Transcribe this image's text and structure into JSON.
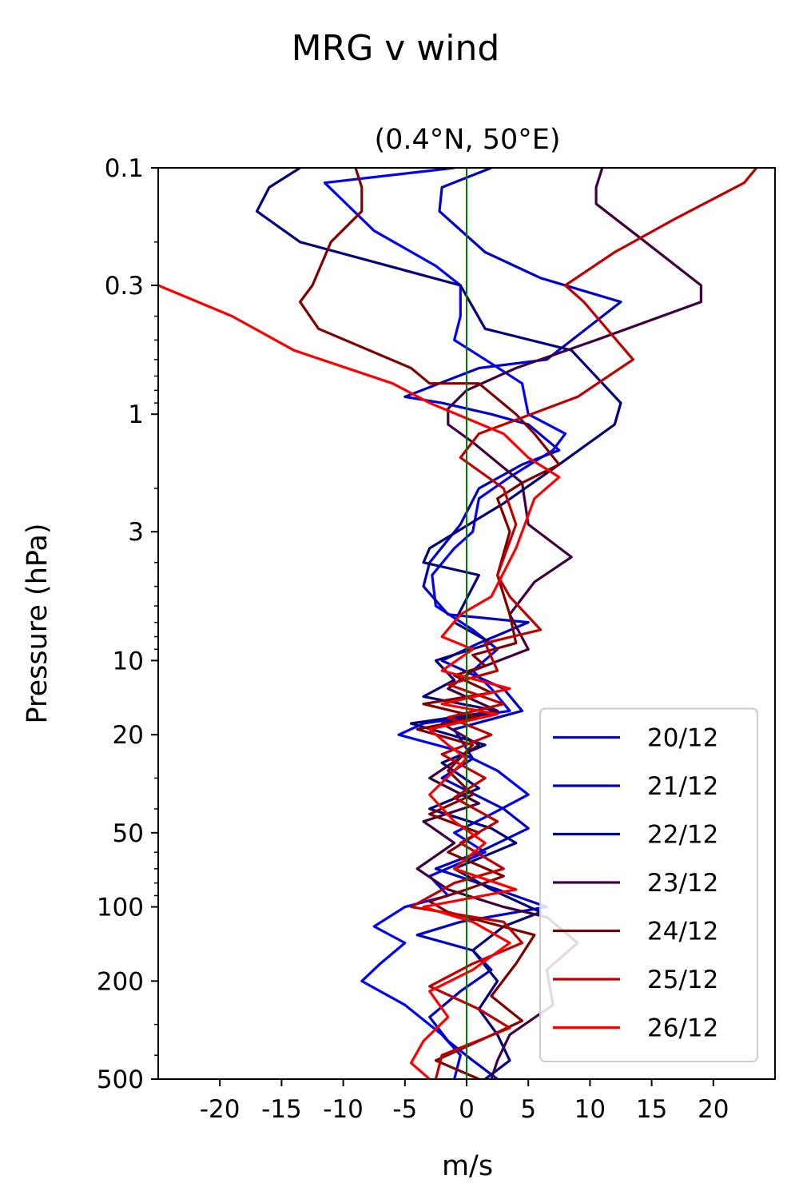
{
  "chart_data": {
    "type": "line",
    "title": "MRG v wind",
    "subtitle": "(0.4°N, 50°E)",
    "xlabel": "m/s",
    "ylabel": "Pressure (hPa)",
    "xlim": [
      -25,
      25
    ],
    "ylim": [
      500,
      0.1
    ],
    "yscale": "log",
    "yaxis_inverted": true,
    "x_ticks": [
      -20,
      -15,
      -10,
      -5,
      0,
      5,
      10,
      15,
      20
    ],
    "x_tick_labels": [
      "-20",
      "-15",
      "-10",
      "-5",
      "0",
      "5",
      "10",
      "15",
      "20"
    ],
    "y_ticks": [
      0.1,
      0.3,
      1,
      3,
      10,
      20,
      50,
      100,
      200,
      500
    ],
    "y_tick_labels": [
      "0.1",
      "0.3",
      "1",
      "3",
      "10",
      "20",
      "50",
      "100",
      "200",
      "500"
    ],
    "grid": false,
    "legend_position": "bottom-right",
    "reference_line": {
      "x": 0,
      "color": "#007a00"
    },
    "series": [
      {
        "name": "20/12",
        "color": "#0000ff",
        "points": [
          [
            -1.0,
            0.1
          ],
          [
            -11.5,
            0.115
          ],
          [
            -7.5,
            0.18
          ],
          [
            -2.5,
            0.25
          ],
          [
            -0.5,
            0.3
          ],
          [
            -0.5,
            0.4
          ],
          [
            -1.0,
            0.5
          ],
          [
            1.5,
            0.6
          ],
          [
            4.5,
            0.75
          ],
          [
            5.0,
            1.0
          ],
          [
            8.0,
            1.2
          ],
          [
            7.0,
            1.4
          ],
          [
            3.5,
            1.8
          ],
          [
            1.0,
            2.2
          ],
          [
            0.5,
            3.0
          ],
          [
            -1.0,
            3.5
          ],
          [
            -2.8,
            4.5
          ],
          [
            -2.5,
            6.0
          ],
          [
            0.5,
            7.5
          ],
          [
            2.5,
            9.0
          ],
          [
            0.5,
            11.0
          ],
          [
            2.0,
            13.0
          ],
          [
            3.5,
            16.0
          ],
          [
            -3.5,
            18.0
          ],
          [
            -5.5,
            20.0
          ],
          [
            -1.0,
            23.0
          ],
          [
            2.5,
            28.0
          ],
          [
            5.0,
            35.0
          ],
          [
            2.0,
            42.0
          ],
          [
            -1.0,
            50.0
          ],
          [
            1.5,
            60.0
          ],
          [
            -3.0,
            75.0
          ],
          [
            -1.5,
            90.0
          ],
          [
            -5.0,
            100.0
          ],
          [
            -7.5,
            120.0
          ],
          [
            -5.0,
            140.0
          ],
          [
            -7.0,
            170.0
          ],
          [
            -8.5,
            200.0
          ],
          [
            -5.0,
            250.0
          ],
          [
            -2.0,
            330.0
          ],
          [
            -0.5,
            400.0
          ],
          [
            -1.0,
            500.0
          ]
        ]
      },
      {
        "name": "21/12",
        "color": "#0000cc",
        "points": [
          [
            2.0,
            0.1
          ],
          [
            -2.0,
            0.12
          ],
          [
            -2.2,
            0.15
          ],
          [
            1.5,
            0.22
          ],
          [
            6.0,
            0.28
          ],
          [
            12.5,
            0.35
          ],
          [
            6.5,
            0.6
          ],
          [
            1.0,
            0.65
          ],
          [
            -5.0,
            0.85
          ],
          [
            -2.0,
            0.9
          ],
          [
            2.0,
            1.0
          ],
          [
            5.0,
            1.1
          ],
          [
            7.5,
            1.4
          ],
          [
            4.5,
            1.6
          ],
          [
            1.0,
            2.0
          ],
          [
            -0.5,
            2.8
          ],
          [
            -3.0,
            4.0
          ],
          [
            -3.5,
            5.0
          ],
          [
            -1.5,
            6.5
          ],
          [
            5.0,
            7.0
          ],
          [
            1.0,
            8.5
          ],
          [
            -2.0,
            10.0
          ],
          [
            3.0,
            13.0
          ],
          [
            4.5,
            16.0
          ],
          [
            -1.0,
            19.0
          ],
          [
            0.5,
            25.0
          ],
          [
            -2.0,
            30.0
          ],
          [
            3.0,
            40.0
          ],
          [
            5.0,
            48.0
          ],
          [
            1.0,
            60.0
          ],
          [
            -2.5,
            70.0
          ],
          [
            2.5,
            85.0
          ],
          [
            6.5,
            100.0
          ],
          [
            -0.5,
            115.0
          ],
          [
            -4.0,
            130.0
          ],
          [
            0.5,
            150.0
          ],
          [
            2.0,
            180.0
          ],
          [
            -0.5,
            220.0
          ],
          [
            -3.0,
            280.0
          ],
          [
            -1.5,
            350.0
          ],
          [
            0.5,
            420.0
          ],
          [
            2.5,
            500.0
          ]
        ]
      },
      {
        "name": "22/12",
        "color": "#000080",
        "points": [
          [
            -13.5,
            0.1
          ],
          [
            -16.0,
            0.12
          ],
          [
            -17.0,
            0.15
          ],
          [
            -13.5,
            0.2
          ],
          [
            -0.5,
            0.3
          ],
          [
            1.5,
            0.45
          ],
          [
            8.5,
            0.55
          ],
          [
            12.5,
            0.9
          ],
          [
            12.0,
            1.1
          ],
          [
            7.5,
            1.6
          ],
          [
            3.0,
            2.3
          ],
          [
            -3.0,
            3.5
          ],
          [
            -3.5,
            4.0
          ],
          [
            1.0,
            4.5
          ],
          [
            -1.0,
            7.0
          ],
          [
            2.0,
            8.5
          ],
          [
            -2.5,
            10.0
          ],
          [
            -1.0,
            12.0
          ],
          [
            -3.5,
            14.0
          ],
          [
            2.5,
            16.0
          ],
          [
            -4.5,
            18.0
          ],
          [
            1.5,
            22.0
          ],
          [
            -2.0,
            26.0
          ],
          [
            1.0,
            33.0
          ],
          [
            -3.0,
            40.0
          ],
          [
            2.0,
            48.0
          ],
          [
            4.0,
            55.0
          ],
          [
            -1.0,
            70.0
          ],
          [
            2.0,
            85.0
          ],
          [
            6.0,
            105.0
          ],
          [
            3.0,
            120.0
          ],
          [
            0.5,
            150.0
          ],
          [
            2.5,
            200.0
          ],
          [
            1.0,
            260.0
          ],
          [
            2.5,
            330.0
          ],
          [
            3.5,
            420.0
          ],
          [
            1.5,
            500.0
          ]
        ]
      },
      {
        "name": "23/12",
        "color": "#400040",
        "points": [
          [
            11.0,
            0.1
          ],
          [
            10.5,
            0.12
          ],
          [
            10.5,
            0.14
          ],
          [
            14.5,
            0.2
          ],
          [
            19.0,
            0.3
          ],
          [
            19.0,
            0.35
          ],
          [
            10.5,
            0.5
          ],
          [
            4.0,
            0.65
          ],
          [
            0.0,
            0.8
          ],
          [
            -1.5,
            0.95
          ],
          [
            -1.5,
            1.1
          ],
          [
            0.5,
            1.3
          ],
          [
            4.5,
            1.9
          ],
          [
            5.0,
            2.8
          ],
          [
            8.5,
            3.8
          ],
          [
            5.5,
            4.8
          ],
          [
            3.5,
            6.5
          ],
          [
            5.0,
            9.0
          ],
          [
            0.5,
            11.0
          ],
          [
            -1.5,
            13.0
          ],
          [
            2.5,
            16.0
          ],
          [
            -2.0,
            18.0
          ],
          [
            1.0,
            22.0
          ],
          [
            -3.0,
            30.0
          ],
          [
            1.0,
            38.0
          ],
          [
            -3.5,
            45.0
          ],
          [
            -1.0,
            55.0
          ],
          [
            -4.0,
            70.0
          ],
          [
            -1.5,
            85.0
          ],
          [
            3.0,
            100.0
          ],
          [
            6.5,
            110.0
          ],
          [
            9.0,
            140.0
          ],
          [
            6.5,
            180.0
          ],
          [
            7.0,
            250.0
          ],
          [
            3.5,
            330.0
          ],
          [
            2.5,
            420.0
          ],
          [
            2.0,
            500.0
          ]
        ]
      },
      {
        "name": "24/12",
        "color": "#800000",
        "points": [
          [
            -9.0,
            0.1
          ],
          [
            -8.5,
            0.12
          ],
          [
            -8.5,
            0.15
          ],
          [
            -11.0,
            0.2
          ],
          [
            -12.5,
            0.3
          ],
          [
            -13.5,
            0.35
          ],
          [
            -12.0,
            0.45
          ],
          [
            -4.5,
            0.65
          ],
          [
            -3.0,
            0.75
          ],
          [
            1.0,
            0.75
          ],
          [
            4.0,
            1.0
          ],
          [
            5.5,
            1.2
          ],
          [
            7.5,
            1.6
          ],
          [
            4.5,
            1.9
          ],
          [
            2.5,
            2.2
          ],
          [
            3.5,
            3.0
          ],
          [
            2.5,
            4.5
          ],
          [
            3.5,
            6.5
          ],
          [
            4.0,
            8.5
          ],
          [
            0.5,
            9.5
          ],
          [
            1.5,
            10.5
          ],
          [
            -1.0,
            11.5
          ],
          [
            2.0,
            13.5
          ],
          [
            -3.5,
            15.0
          ],
          [
            1.0,
            17.0
          ],
          [
            -4.0,
            19.0
          ],
          [
            0.5,
            22.0
          ],
          [
            -1.5,
            28.0
          ],
          [
            0.5,
            35.0
          ],
          [
            -3.0,
            42.0
          ],
          [
            1.0,
            50.0
          ],
          [
            -1.5,
            60.0
          ],
          [
            3.0,
            75.0
          ],
          [
            0.0,
            85.0
          ],
          [
            -3.0,
            95.0
          ],
          [
            -1.5,
            105.0
          ],
          [
            5.5,
            130.0
          ],
          [
            4.0,
            170.0
          ],
          [
            2.0,
            230.0
          ],
          [
            4.5,
            290.0
          ],
          [
            1.0,
            350.0
          ],
          [
            -2.5,
            420.0
          ],
          [
            1.0,
            500.0
          ]
        ]
      },
      {
        "name": "25/12",
        "color": "#c00000",
        "points": [
          [
            23.5,
            0.1
          ],
          [
            22.5,
            0.115
          ],
          [
            17.0,
            0.16
          ],
          [
            12.0,
            0.22
          ],
          [
            8.0,
            0.3
          ],
          [
            9.5,
            0.35
          ],
          [
            13.5,
            0.6
          ],
          [
            9.0,
            0.85
          ],
          [
            1.0,
            1.2
          ],
          [
            -0.5,
            1.5
          ],
          [
            3.0,
            2.0
          ],
          [
            4.0,
            2.8
          ],
          [
            2.5,
            4.5
          ],
          [
            3.5,
            5.5
          ],
          [
            6.0,
            7.5
          ],
          [
            1.5,
            8.5
          ],
          [
            2.5,
            11.0
          ],
          [
            -1.5,
            12.5
          ],
          [
            3.0,
            15.0
          ],
          [
            -1.5,
            17.0
          ],
          [
            2.0,
            20.0
          ],
          [
            -2.0,
            24.0
          ],
          [
            1.5,
            30.0
          ],
          [
            -1.0,
            36.0
          ],
          [
            2.5,
            45.0
          ],
          [
            -0.5,
            55.0
          ],
          [
            3.0,
            70.0
          ],
          [
            -1.0,
            80.0
          ],
          [
            -4.5,
            100.0
          ],
          [
            3.0,
            115.0
          ],
          [
            4.5,
            140.0
          ],
          [
            0.5,
            170.0
          ],
          [
            -3.0,
            210.0
          ],
          [
            1.0,
            260.0
          ],
          [
            3.5,
            310.0
          ],
          [
            -2.0,
            400.0
          ],
          [
            -2.5,
            500.0
          ]
        ]
      },
      {
        "name": "26/12",
        "color": "#ff0000",
        "points": [
          [
            -25.0,
            0.3
          ],
          [
            -19.0,
            0.4
          ],
          [
            -14.0,
            0.55
          ],
          [
            -6.0,
            0.75
          ],
          [
            -3.0,
            0.9
          ],
          [
            3.0,
            1.2
          ],
          [
            5.0,
            1.5
          ],
          [
            7.5,
            1.8
          ],
          [
            5.5,
            2.2
          ],
          [
            4.0,
            3.5
          ],
          [
            2.0,
            5.5
          ],
          [
            -0.5,
            6.5
          ],
          [
            -2.0,
            8.0
          ],
          [
            0.5,
            9.0
          ],
          [
            -2.0,
            11.0
          ],
          [
            3.5,
            13.0
          ],
          [
            -2.0,
            15.0
          ],
          [
            2.5,
            16.5
          ],
          [
            -3.0,
            19.0
          ],
          [
            -1.5,
            22.0
          ],
          [
            0.0,
            25.0
          ],
          [
            -3.0,
            35.0
          ],
          [
            -1.0,
            45.0
          ],
          [
            1.5,
            55.0
          ],
          [
            -1.0,
            70.0
          ],
          [
            4.0,
            85.0
          ],
          [
            -3.5,
            100.0
          ],
          [
            0.5,
            115.0
          ],
          [
            3.5,
            140.0
          ],
          [
            0.5,
            180.0
          ],
          [
            -3.0,
            220.0
          ],
          [
            -1.5,
            280.0
          ],
          [
            -3.5,
            350.0
          ],
          [
            -4.5,
            430.0
          ],
          [
            -3.0,
            500.0
          ]
        ]
      }
    ]
  }
}
